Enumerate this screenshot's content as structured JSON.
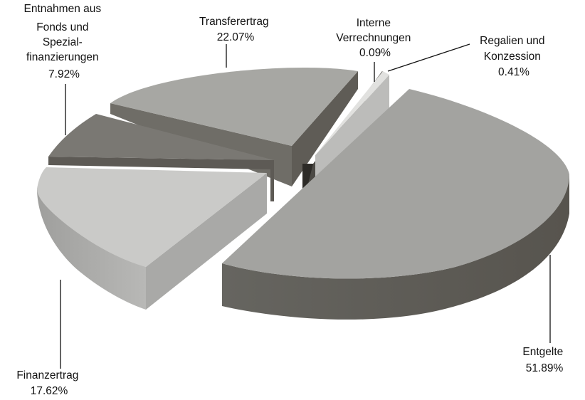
{
  "chart_data": {
    "type": "pie",
    "style": "3d-exploded",
    "title": "",
    "slices": [
      {
        "label": "Entgelte",
        "value": 51.89,
        "value_label": "51.89%",
        "color": "#a3a3a0"
      },
      {
        "label": "Finanzertrag",
        "value": 17.62,
        "value_label": "17.62%",
        "color": "#cacac8"
      },
      {
        "label": "Entnahmen aus Fonds und Spezial-finanzierungen",
        "value": 7.92,
        "value_label": "7.92%",
        "color": "#7a7873"
      },
      {
        "label": "Transferertrag",
        "value": 22.07,
        "value_label": "22.07%",
        "color": "#a7a7a3"
      },
      {
        "label": "Interne Verrechnungen",
        "value": 0.09,
        "value_label": "0.09%",
        "color": "#4c4a45"
      },
      {
        "label": "Regalien und Konzession",
        "value": 0.41,
        "value_label": "0.41%",
        "color": "#cfcfcd"
      }
    ],
    "label_lines": {
      "entgelte": [
        "Entgelte"
      ],
      "finanzertrag": [
        "Finanzertrag"
      ],
      "entnahmen": [
        "Entnahmen aus",
        "Fonds und",
        "Spezial-",
        "finanzierungen"
      ],
      "transferertrag": [
        "Transferertrag"
      ],
      "interne": [
        "Interne",
        "Verrechnungen"
      ],
      "regalien": [
        "Regalien und",
        "Konzession"
      ]
    },
    "legend": "none"
  }
}
